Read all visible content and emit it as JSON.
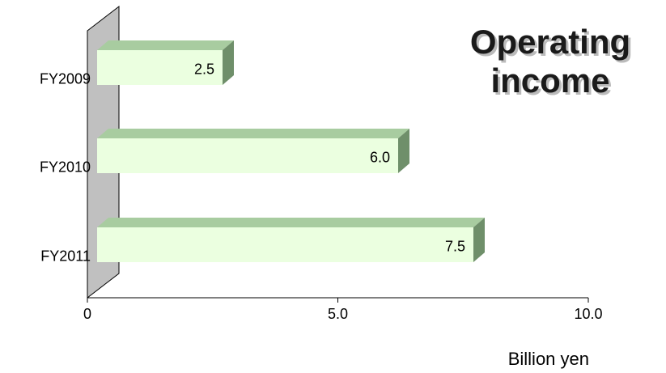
{
  "chart_data": {
    "type": "bar3d",
    "orientation": "horizontal",
    "title": "Operating income",
    "categories": [
      "FY2009",
      "FY2010",
      "FY2011"
    ],
    "values": [
      2.5,
      6.0,
      7.5
    ],
    "value_labels": [
      "2.5",
      "6.0",
      "7.5"
    ],
    "color": "#ebffe0",
    "xlim": [
      0,
      10
    ],
    "xticks": [
      0,
      {
        "value": 5,
        "label": "5.0"
      },
      {
        "value": 10,
        "label": "10.0"
      }
    ],
    "xlabel": "Billion yen"
  }
}
